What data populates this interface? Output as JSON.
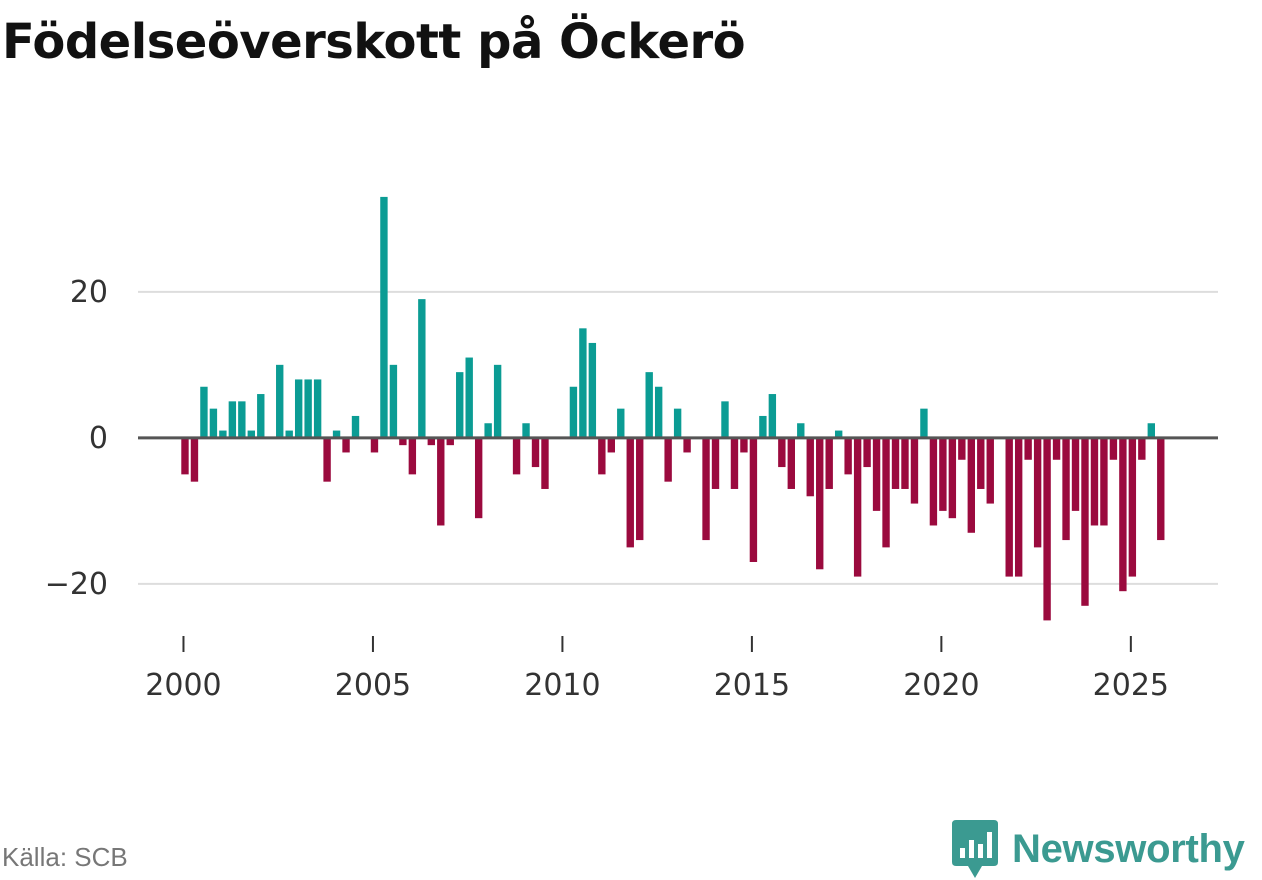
{
  "title": "Födelseöverskott på Öckerö",
  "source": "Källa: SCB",
  "brand": "Newsworthy",
  "colors": {
    "positive": "#0b9c94",
    "negative": "#9b0a3e",
    "zero_line": "#555555",
    "grid": "#dddddd",
    "brand": "#3b9a91"
  },
  "chart_data": {
    "type": "bar",
    "title": "Födelseöverskott på Öckerö",
    "xlabel": "",
    "ylabel": "",
    "ylim": [
      -27,
      36
    ],
    "xlim": [
      1998.8,
      2027.3
    ],
    "yticks": [
      -20,
      0,
      20
    ],
    "ytick_labels": [
      "−20",
      "0",
      "20"
    ],
    "xticks": [
      2000,
      2005,
      2010,
      2015,
      2020,
      2025
    ],
    "xtick_labels": [
      "2000",
      "2005",
      "2010",
      "2015",
      "2020",
      "2025"
    ],
    "start": 2000,
    "step_months": 3,
    "grid": true,
    "values": [
      -5,
      -6,
      7,
      4,
      1,
      5,
      5,
      1,
      6,
      0,
      10,
      1,
      8,
      8,
      8,
      -6,
      1,
      -2,
      3,
      0,
      -2,
      33,
      10,
      -1,
      -5,
      19,
      -1,
      -12,
      -1,
      9,
      11,
      -11,
      2,
      10,
      0,
      -5,
      2,
      -4,
      -7,
      0,
      0,
      7,
      15,
      13,
      -5,
      -2,
      4,
      -15,
      -14,
      9,
      7,
      -6,
      4,
      -2,
      0,
      -14,
      -7,
      5,
      -7,
      -2,
      -17,
      3,
      6,
      -4,
      -7,
      2,
      -8,
      -18,
      -7,
      1,
      -5,
      -19,
      -4,
      -10,
      -15,
      -7,
      -7,
      -9,
      4,
      -12,
      -10,
      -11,
      -3,
      -13,
      -7,
      -9,
      0,
      -19,
      -19,
      -3,
      -15,
      -25,
      -3,
      -14,
      -10,
      -23,
      -12,
      -12,
      -3,
      -21,
      -19,
      -3,
      2,
      -14
    ]
  }
}
